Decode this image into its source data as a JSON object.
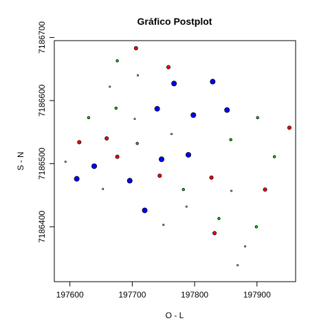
{
  "chart_data": {
    "type": "scatter",
    "title": "Gráfico Postplot",
    "xlabel": "O - L",
    "ylabel": "S - N",
    "x_ticks": [
      197600,
      197700,
      197800,
      197900
    ],
    "y_ticks": [
      7186400,
      7186500,
      7186600,
      7186700
    ],
    "xlim": [
      197575,
      197962
    ],
    "ylim": [
      7186313,
      7186695
    ],
    "grid": false,
    "legend": "none",
    "colors": {
      "red": "#ff0000",
      "blue": "#0000ff",
      "green": "#00cc00",
      "white": "#ffffff",
      "outline": "#000000"
    },
    "points": [
      {
        "x": 197706,
        "y": 7186683,
        "color": "red",
        "size": "medium"
      },
      {
        "x": 197758,
        "y": 7186653,
        "color": "red",
        "size": "medium"
      },
      {
        "x": 197615,
        "y": 7186534,
        "color": "red",
        "size": "medium"
      },
      {
        "x": 197659,
        "y": 7186540,
        "color": "red",
        "size": "medium"
      },
      {
        "x": 197676,
        "y": 7186511,
        "color": "red",
        "size": "medium"
      },
      {
        "x": 197744,
        "y": 7186481,
        "color": "red",
        "size": "medium"
      },
      {
        "x": 197827,
        "y": 7186478,
        "color": "red",
        "size": "medium"
      },
      {
        "x": 197913,
        "y": 7186459,
        "color": "red",
        "size": "medium"
      },
      {
        "x": 197952,
        "y": 7186557,
        "color": "red",
        "size": "medium"
      },
      {
        "x": 197832,
        "y": 7186390,
        "color": "red",
        "size": "medium"
      },
      {
        "x": 197767,
        "y": 7186627,
        "color": "blue",
        "size": "large"
      },
      {
        "x": 197829,
        "y": 7186630,
        "color": "blue",
        "size": "large"
      },
      {
        "x": 197740,
        "y": 7186587,
        "color": "blue",
        "size": "large"
      },
      {
        "x": 197798,
        "y": 7186577,
        "color": "blue",
        "size": "large"
      },
      {
        "x": 197852,
        "y": 7186585,
        "color": "blue",
        "size": "large"
      },
      {
        "x": 197790,
        "y": 7186514,
        "color": "blue",
        "size": "large"
      },
      {
        "x": 197747,
        "y": 7186507,
        "color": "blue",
        "size": "large"
      },
      {
        "x": 197639,
        "y": 7186496,
        "color": "blue",
        "size": "large"
      },
      {
        "x": 197611,
        "y": 7186476,
        "color": "blue",
        "size": "large"
      },
      {
        "x": 197696,
        "y": 7186473,
        "color": "blue",
        "size": "large"
      },
      {
        "x": 197720,
        "y": 7186426,
        "color": "blue",
        "size": "large"
      },
      {
        "x": 197676,
        "y": 7186663,
        "color": "green",
        "size": "small"
      },
      {
        "x": 197630,
        "y": 7186573,
        "color": "green",
        "size": "small"
      },
      {
        "x": 197674,
        "y": 7186588,
        "color": "green",
        "size": "small"
      },
      {
        "x": 197708,
        "y": 7186532,
        "color": "green",
        "size": "small"
      },
      {
        "x": 197782,
        "y": 7186459,
        "color": "green",
        "size": "small"
      },
      {
        "x": 197858,
        "y": 7186538,
        "color": "green",
        "size": "small"
      },
      {
        "x": 197901,
        "y": 7186573,
        "color": "green",
        "size": "small"
      },
      {
        "x": 197928,
        "y": 7186511,
        "color": "green",
        "size": "small"
      },
      {
        "x": 197839,
        "y": 7186413,
        "color": "green",
        "size": "small"
      },
      {
        "x": 197899,
        "y": 7186400,
        "color": "green",
        "size": "small"
      },
      {
        "x": 197709,
        "y": 7186640,
        "color": "white",
        "size": "tiny"
      },
      {
        "x": 197664,
        "y": 7186622,
        "color": "white",
        "size": "tiny"
      },
      {
        "x": 197704,
        "y": 7186571,
        "color": "white",
        "size": "tiny"
      },
      {
        "x": 197763,
        "y": 7186547,
        "color": "white",
        "size": "tiny"
      },
      {
        "x": 197593,
        "y": 7186503,
        "color": "white",
        "size": "tiny"
      },
      {
        "x": 197653,
        "y": 7186460,
        "color": "white",
        "size": "tiny"
      },
      {
        "x": 197787,
        "y": 7186432,
        "color": "white",
        "size": "tiny"
      },
      {
        "x": 197750,
        "y": 7186403,
        "color": "white",
        "size": "tiny"
      },
      {
        "x": 197859,
        "y": 7186457,
        "color": "white",
        "size": "tiny"
      },
      {
        "x": 197881,
        "y": 7186369,
        "color": "white",
        "size": "tiny"
      },
      {
        "x": 197869,
        "y": 7186339,
        "color": "white",
        "size": "tiny"
      }
    ]
  }
}
